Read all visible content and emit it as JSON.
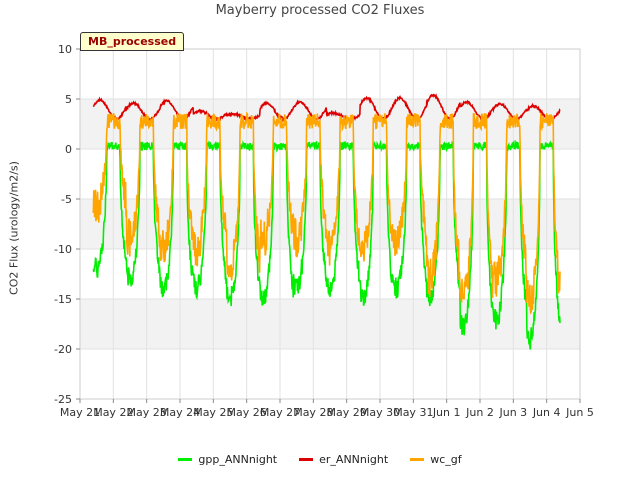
{
  "chart_data": {
    "type": "line",
    "title": "Mayberry processed CO2 Fluxes",
    "ylabel": "CO2 Flux (urology/m2/s)",
    "xlabel": "",
    "tag": "MB_processed",
    "ylim": [
      -25,
      10
    ],
    "yticks": [
      -25,
      -20,
      -15,
      -10,
      -5,
      0,
      5,
      10
    ],
    "xlim": [
      0,
      15
    ],
    "xticks": [
      0,
      1,
      2,
      3,
      4,
      5,
      6,
      7,
      8,
      9,
      10,
      11,
      12,
      13,
      14,
      15
    ],
    "xtick_labels": [
      "May 21",
      "May 22",
      "May 23",
      "May 24",
      "May 25",
      "May 26",
      "May 27",
      "May 28",
      "May 29",
      "May 30",
      "May 31",
      "Jun 1",
      "Jun 2",
      "Jun 3",
      "Jun 4",
      "Jun 5"
    ],
    "day_start": 0.4,
    "day_end": 14.4,
    "day_max": {
      "gpp": [
        -12,
        -13,
        -14,
        -14,
        -15,
        -15,
        -14,
        -14,
        -15,
        -14,
        -15,
        -18,
        -17,
        -19
      ],
      "er": [
        4.9,
        4.6,
        4.8,
        3.8,
        3.5,
        4.6,
        4.7,
        3.6,
        5.1,
        5.1,
        5.4,
        4.7,
        4.5,
        4.3
      ],
      "wc": [
        -6,
        -9,
        -10,
        -10,
        -12,
        -9,
        -9,
        -10,
        -10,
        -9,
        -13,
        -15,
        -13,
        -15
      ]
    },
    "series": [
      {
        "name": "gpp_ANNnight",
        "color": "#00ee00"
      },
      {
        "name": "er_ANNnight",
        "color": "#dd0000"
      },
      {
        "name": "wc_gf",
        "color": "#ffa500"
      }
    ]
  }
}
